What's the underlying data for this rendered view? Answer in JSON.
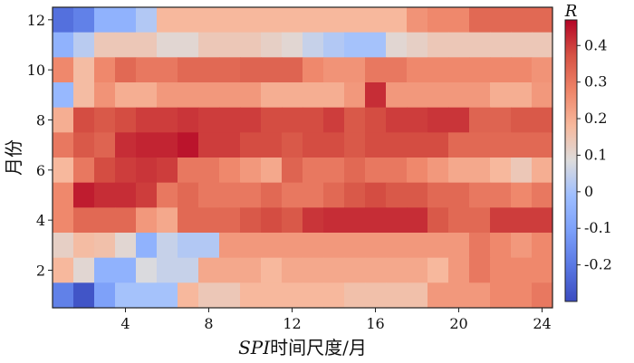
{
  "chart_data": {
    "type": "heatmap",
    "xlabel_italic": "SPI",
    "xlabel_rest": "时间尺度/月",
    "ylabel": "月份",
    "x_ticks": [
      4,
      8,
      12,
      16,
      20,
      24
    ],
    "y_ticks": [
      2,
      4,
      6,
      8,
      10,
      12
    ],
    "x_range": [
      1,
      24
    ],
    "y_range": [
      1,
      12
    ],
    "colorbar": {
      "title": "R",
      "min": -0.3,
      "max": 0.47,
      "ticks": [
        -0.2,
        -0.1,
        0,
        0.1,
        0.2,
        0.3,
        0.4
      ],
      "tick_labels": [
        "-0.2",
        "-0.1",
        "0",
        "0.1",
        "0.2",
        "0.3",
        "0.4"
      ]
    },
    "rows": [
      {
        "month": 12,
        "values": [
          -0.22,
          -0.18,
          -0.05,
          -0.05,
          0.02,
          0.18,
          0.18,
          0.18,
          0.18,
          0.18,
          0.18,
          0.18,
          0.18,
          0.18,
          0.18,
          0.18,
          0.18,
          0.25,
          0.27,
          0.27,
          0.33,
          0.33,
          0.33,
          0.33
        ]
      },
      {
        "month": 11,
        "values": [
          -0.05,
          0.03,
          0.14,
          0.14,
          0.14,
          0.1,
          0.1,
          0.14,
          0.14,
          0.14,
          0.12,
          0.1,
          0.05,
          0.02,
          0.0,
          0.0,
          0.1,
          0.12,
          0.14,
          0.14,
          0.14,
          0.14,
          0.14,
          0.14
        ]
      },
      {
        "month": 10,
        "values": [
          0.27,
          0.17,
          0.27,
          0.33,
          0.3,
          0.3,
          0.33,
          0.33,
          0.33,
          0.34,
          0.34,
          0.34,
          0.27,
          0.25,
          0.25,
          0.3,
          0.3,
          0.27,
          0.27,
          0.27,
          0.27,
          0.27,
          0.27,
          0.25
        ]
      },
      {
        "month": 9,
        "values": [
          -0.03,
          0.17,
          0.25,
          0.2,
          0.2,
          0.24,
          0.24,
          0.24,
          0.24,
          0.24,
          0.2,
          0.2,
          0.2,
          0.2,
          0.24,
          0.42,
          0.24,
          0.24,
          0.24,
          0.24,
          0.24,
          0.2,
          0.2,
          0.24
        ]
      },
      {
        "month": 8,
        "values": [
          0.2,
          0.38,
          0.36,
          0.38,
          0.4,
          0.4,
          0.41,
          0.4,
          0.4,
          0.4,
          0.38,
          0.38,
          0.38,
          0.4,
          0.36,
          0.38,
          0.4,
          0.4,
          0.41,
          0.41,
          0.34,
          0.34,
          0.36,
          0.36
        ]
      },
      {
        "month": 7,
        "values": [
          0.3,
          0.36,
          0.34,
          0.42,
          0.43,
          0.43,
          0.45,
          0.4,
          0.4,
          0.38,
          0.38,
          0.36,
          0.38,
          0.38,
          0.36,
          0.38,
          0.38,
          0.38,
          0.38,
          0.33,
          0.33,
          0.33,
          0.33,
          0.33
        ]
      },
      {
        "month": 6,
        "values": [
          0.18,
          0.3,
          0.38,
          0.4,
          0.41,
          0.4,
          0.3,
          0.3,
          0.27,
          0.24,
          0.21,
          0.34,
          0.3,
          0.3,
          0.33,
          0.3,
          0.3,
          0.27,
          0.24,
          0.21,
          0.21,
          0.18,
          0.14,
          0.2
        ]
      },
      {
        "month": 5,
        "values": [
          0.27,
          0.44,
          0.42,
          0.42,
          0.4,
          0.3,
          0.33,
          0.3,
          0.3,
          0.3,
          0.33,
          0.3,
          0.3,
          0.33,
          0.36,
          0.38,
          0.36,
          0.36,
          0.33,
          0.33,
          0.3,
          0.3,
          0.27,
          0.3
        ]
      },
      {
        "month": 4,
        "values": [
          0.27,
          0.33,
          0.33,
          0.33,
          0.24,
          0.21,
          0.33,
          0.33,
          0.33,
          0.36,
          0.38,
          0.36,
          0.41,
          0.42,
          0.42,
          0.42,
          0.42,
          0.42,
          0.36,
          0.33,
          0.33,
          0.4,
          0.4,
          0.4
        ]
      },
      {
        "month": 3,
        "values": [
          0.12,
          0.17,
          0.16,
          0.1,
          -0.05,
          0.05,
          0.02,
          0.02,
          0.24,
          0.24,
          0.24,
          0.24,
          0.24,
          0.24,
          0.24,
          0.24,
          0.24,
          0.24,
          0.24,
          0.24,
          0.3,
          0.27,
          0.24,
          0.27
        ]
      },
      {
        "month": 2,
        "values": [
          0.18,
          0.1,
          -0.05,
          -0.05,
          0.08,
          0.05,
          0.05,
          0.21,
          0.21,
          0.21,
          0.18,
          0.21,
          0.21,
          0.21,
          0.21,
          0.21,
          0.21,
          0.21,
          0.18,
          0.24,
          0.3,
          0.27,
          0.27,
          0.27
        ]
      },
      {
        "month": 1,
        "values": [
          -0.18,
          -0.28,
          -0.1,
          0.0,
          0.0,
          0.0,
          0.18,
          0.14,
          0.14,
          0.18,
          0.18,
          0.18,
          0.18,
          0.18,
          0.16,
          0.16,
          0.16,
          0.16,
          0.24,
          0.24,
          0.24,
          0.27,
          0.27,
          0.3
        ]
      }
    ]
  }
}
